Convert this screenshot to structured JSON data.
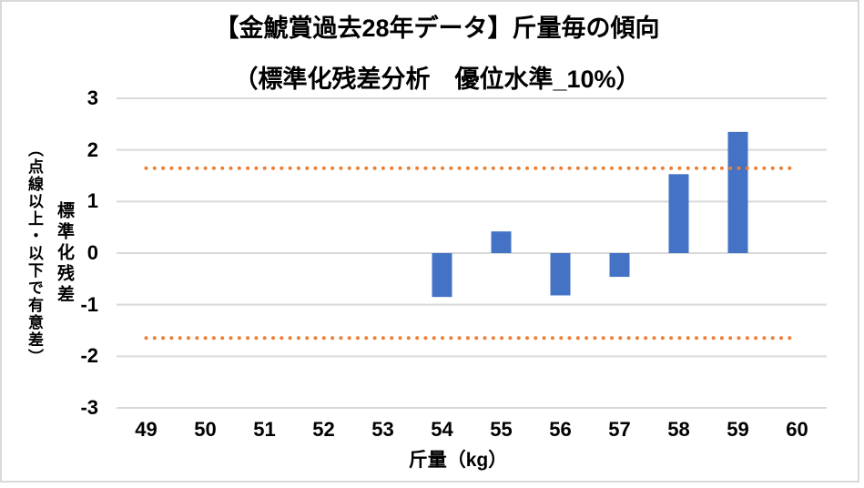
{
  "chart_data": {
    "type": "bar",
    "title": "【金鯱賞過去28年データ】斤量毎の傾向",
    "subtitle": "（標準化残差分析　優位水準_10%）",
    "categories": [
      49,
      50,
      51,
      52,
      53,
      54,
      55,
      56,
      57,
      58,
      59,
      60
    ],
    "values": [
      null,
      null,
      null,
      null,
      null,
      -0.85,
      0.42,
      -0.82,
      -0.46,
      1.53,
      2.35,
      null
    ],
    "xlabel": "斤量（kg）",
    "ylabel_main": "標準化残差",
    "ylabel_note": "（点線以上・以下で有意差）",
    "ylim": [
      -3,
      3
    ],
    "y_ticks": [
      3,
      2,
      1,
      0,
      -1,
      -2,
      -3
    ],
    "grid": "horizontal",
    "legend": "none",
    "significance_lines": {
      "values": [
        1.645,
        -1.645
      ],
      "style": "round-dotted",
      "color": "#ED7D31"
    },
    "bar_color": "#4472C4",
    "gridline_color": "#D9D9D9",
    "border_color": "#D9D9D9",
    "background_color": "#FFFFFF",
    "text_color": "#000000"
  }
}
